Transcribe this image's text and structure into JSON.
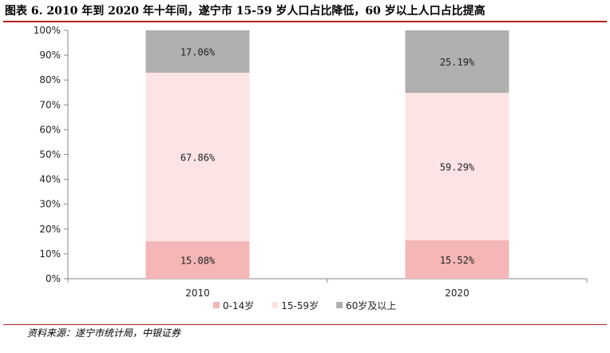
{
  "header": {
    "title": "图表 6. 2010 年到 2020 年十年间，遂宁市 15-59 岁人口占比降低，60 岁以上人口占比提高"
  },
  "footer": {
    "source": "资料来源：遂宁市统计局，中银证券"
  },
  "chart_data": {
    "type": "bar",
    "stacked": true,
    "categories": [
      "2010",
      "2020"
    ],
    "series": [
      {
        "name": "0-14岁",
        "values": [
          15.08,
          15.52
        ],
        "labels": [
          "15.08%",
          "15.52%"
        ],
        "color": "#f4b6b6"
      },
      {
        "name": "15-59岁",
        "values": [
          67.86,
          59.29
        ],
        "labels": [
          "67.86%",
          "59.29%"
        ],
        "color": "#fde4e4"
      },
      {
        "name": "60岁及以上",
        "values": [
          17.06,
          25.19
        ],
        "labels": [
          "17.06%",
          "25.19%"
        ],
        "color": "#b0b0b0"
      }
    ],
    "ylim": [
      0,
      100
    ],
    "yticks": [
      "0%",
      "10%",
      "20%",
      "30%",
      "40%",
      "50%",
      "60%",
      "70%",
      "80%",
      "90%",
      "100%"
    ],
    "xlabel": "",
    "ylabel": "",
    "grid": false,
    "legend_position": "bottom"
  }
}
